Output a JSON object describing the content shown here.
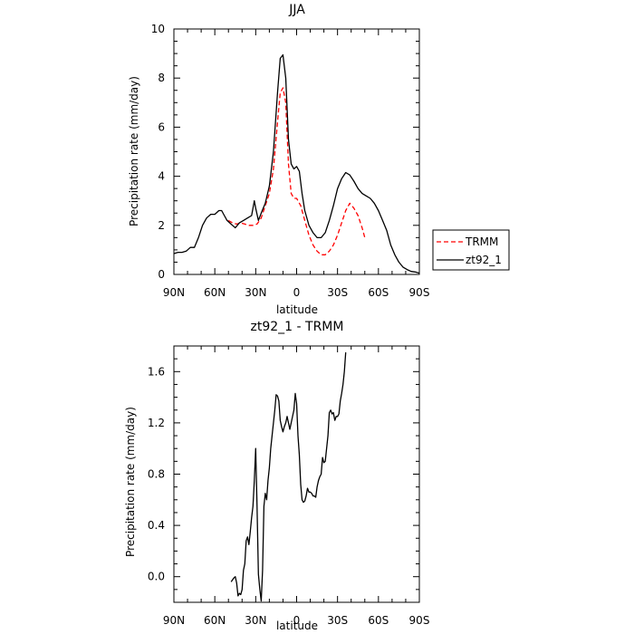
{
  "chart_data": [
    {
      "type": "line",
      "title": "JJA",
      "xlabel": "latitude",
      "ylabel": "Precipitation rate (mm/day)",
      "xlim": [
        90,
        -90
      ],
      "ylim": [
        0,
        10
      ],
      "x_ticks": [
        {
          "value": 90,
          "label": "90N"
        },
        {
          "value": 60,
          "label": "60N"
        },
        {
          "value": 30,
          "label": "30N"
        },
        {
          "value": 0,
          "label": "0"
        },
        {
          "value": -30,
          "label": "30S"
        },
        {
          "value": -60,
          "label": "60S"
        },
        {
          "value": -90,
          "label": "90S"
        }
      ],
      "y_ticks": [
        {
          "value": 0,
          "label": "0"
        },
        {
          "value": 2,
          "label": "2"
        },
        {
          "value": 4,
          "label": "4"
        },
        {
          "value": 6,
          "label": "6"
        },
        {
          "value": 8,
          "label": "8"
        },
        {
          "value": 10,
          "label": "10"
        }
      ],
      "legend_position": "right",
      "series": [
        {
          "name": "TRMM",
          "color": "#ff0000",
          "dash": "dashed",
          "points": [
            [
              50,
              2.2
            ],
            [
              47,
              2.1
            ],
            [
              44,
              2.05
            ],
            [
              41,
              2.1
            ],
            [
              38,
              2.05
            ],
            [
              35,
              2.0
            ],
            [
              32,
              2.0
            ],
            [
              29,
              2.05
            ],
            [
              26,
              2.3
            ],
            [
              23,
              2.8
            ],
            [
              20,
              3.3
            ],
            [
              17,
              4.3
            ],
            [
              14,
              6.2
            ],
            [
              12,
              7.4
            ],
            [
              10,
              7.6
            ],
            [
              8,
              7.0
            ],
            [
              6,
              4.5
            ],
            [
              4,
              3.3
            ],
            [
              2,
              3.1
            ],
            [
              0,
              3.1
            ],
            [
              -3,
              2.8
            ],
            [
              -6,
              2.2
            ],
            [
              -9,
              1.6
            ],
            [
              -12,
              1.2
            ],
            [
              -15,
              0.95
            ],
            [
              -18,
              0.8
            ],
            [
              -21,
              0.8
            ],
            [
              -24,
              0.95
            ],
            [
              -27,
              1.2
            ],
            [
              -30,
              1.6
            ],
            [
              -33,
              2.1
            ],
            [
              -36,
              2.6
            ],
            [
              -39,
              2.9
            ],
            [
              -42,
              2.7
            ],
            [
              -45,
              2.4
            ],
            [
              -48,
              1.9
            ],
            [
              -50,
              1.5
            ]
          ]
        },
        {
          "name": "zt92_1",
          "color": "#000000",
          "dash": "solid",
          "points": [
            [
              90,
              0.85
            ],
            [
              87,
              0.9
            ],
            [
              84,
              0.9
            ],
            [
              81,
              0.95
            ],
            [
              78,
              1.1
            ],
            [
              75,
              1.1
            ],
            [
              72,
              1.5
            ],
            [
              69,
              2.0
            ],
            [
              66,
              2.3
            ],
            [
              63,
              2.45
            ],
            [
              60,
              2.45
            ],
            [
              57,
              2.6
            ],
            [
              55,
              2.6
            ],
            [
              53,
              2.4
            ],
            [
              51,
              2.2
            ],
            [
              49,
              2.1
            ],
            [
              47,
              2.0
            ],
            [
              45,
              1.9
            ],
            [
              42,
              2.1
            ],
            [
              39,
              2.2
            ],
            [
              36,
              2.3
            ],
            [
              33,
              2.4
            ],
            [
              31,
              3.0
            ],
            [
              30,
              2.7
            ],
            [
              28,
              2.2
            ],
            [
              26,
              2.5
            ],
            [
              23,
              2.9
            ],
            [
              20,
              3.6
            ],
            [
              17,
              5.0
            ],
            [
              14,
              7.4
            ],
            [
              12,
              8.8
            ],
            [
              10,
              8.95
            ],
            [
              8,
              8.0
            ],
            [
              6,
              5.5
            ],
            [
              4,
              4.5
            ],
            [
              2,
              4.3
            ],
            [
              0,
              4.4
            ],
            [
              -2,
              4.2
            ],
            [
              -4,
              3.3
            ],
            [
              -6,
              2.6
            ],
            [
              -9,
              2.0
            ],
            [
              -12,
              1.7
            ],
            [
              -15,
              1.5
            ],
            [
              -18,
              1.5
            ],
            [
              -21,
              1.7
            ],
            [
              -24,
              2.2
            ],
            [
              -27,
              2.8
            ],
            [
              -30,
              3.5
            ],
            [
              -33,
              3.9
            ],
            [
              -36,
              4.15
            ],
            [
              -39,
              4.05
            ],
            [
              -42,
              3.8
            ],
            [
              -45,
              3.5
            ],
            [
              -48,
              3.3
            ],
            [
              -51,
              3.2
            ],
            [
              -54,
              3.1
            ],
            [
              -57,
              2.9
            ],
            [
              -60,
              2.6
            ],
            [
              -63,
              2.2
            ],
            [
              -66,
              1.8
            ],
            [
              -69,
              1.2
            ],
            [
              -72,
              0.8
            ],
            [
              -75,
              0.5
            ],
            [
              -78,
              0.3
            ],
            [
              -81,
              0.2
            ],
            [
              -84,
              0.12
            ],
            [
              -87,
              0.1
            ],
            [
              -90,
              0.05
            ]
          ]
        }
      ]
    },
    {
      "type": "line",
      "title": "zt92_1 - TRMM",
      "xlabel": "latitude",
      "ylabel": "Precipitation rate (mm/day)",
      "xlim": [
        90,
        -90
      ],
      "ylim": [
        -0.2,
        1.8
      ],
      "x_ticks": [
        {
          "value": 90,
          "label": "90N"
        },
        {
          "value": 60,
          "label": "60N"
        },
        {
          "value": 30,
          "label": "30N"
        },
        {
          "value": 0,
          "label": "0"
        },
        {
          "value": -30,
          "label": "30S"
        },
        {
          "value": -60,
          "label": "60S"
        },
        {
          "value": -90,
          "label": "90S"
        }
      ],
      "y_ticks": [
        {
          "value": 0,
          "label": "0.0"
        },
        {
          "value": 0.4,
          "label": "0.4"
        },
        {
          "value": 0.8,
          "label": "0.8"
        },
        {
          "value": 1.2,
          "label": "1.2"
        },
        {
          "value": 1.6,
          "label": "1.6"
        }
      ],
      "series": [
        {
          "color": "#000000",
          "dash": "solid",
          "points": [
            [
              48,
              -0.04
            ],
            [
              46,
              -0.01
            ],
            [
              45,
              0.0
            ],
            [
              44,
              -0.05
            ],
            [
              43,
              -0.15
            ],
            [
              42,
              -0.13
            ],
            [
              41,
              -0.14
            ],
            [
              40,
              -0.1
            ],
            [
              39,
              0.05
            ],
            [
              38,
              0.1
            ],
            [
              37,
              0.28
            ],
            [
              36,
              0.31
            ],
            [
              35,
              0.25
            ],
            [
              34,
              0.35
            ],
            [
              33,
              0.46
            ],
            [
              32,
              0.55
            ],
            [
              31,
              0.75
            ],
            [
              30,
              1.0
            ],
            [
              29,
              0.55
            ],
            [
              28,
              0.02
            ],
            [
              27,
              -0.1
            ],
            [
              26,
              -0.19
            ],
            [
              25,
              0.05
            ],
            [
              24,
              0.55
            ],
            [
              23,
              0.65
            ],
            [
              22,
              0.6
            ],
            [
              21,
              0.75
            ],
            [
              20,
              0.85
            ],
            [
              19,
              1.0
            ],
            [
              18,
              1.1
            ],
            [
              17,
              1.2
            ],
            [
              16,
              1.3
            ],
            [
              15,
              1.42
            ],
            [
              14,
              1.41
            ],
            [
              13,
              1.37
            ],
            [
              12,
              1.22
            ],
            [
              11,
              1.17
            ],
            [
              10,
              1.13
            ],
            [
              9,
              1.17
            ],
            [
              8,
              1.2
            ],
            [
              7,
              1.25
            ],
            [
              6,
              1.2
            ],
            [
              5,
              1.15
            ],
            [
              4,
              1.2
            ],
            [
              3,
              1.25
            ],
            [
              2,
              1.3
            ],
            [
              1,
              1.43
            ],
            [
              0,
              1.35
            ],
            [
              -1,
              1.1
            ],
            [
              -2,
              0.95
            ],
            [
              -3,
              0.72
            ],
            [
              -4,
              0.6
            ],
            [
              -5,
              0.58
            ],
            [
              -6,
              0.59
            ],
            [
              -7,
              0.63
            ],
            [
              -8,
              0.69
            ],
            [
              -9,
              0.66
            ],
            [
              -10,
              0.66
            ],
            [
              -11,
              0.65
            ],
            [
              -12,
              0.63
            ],
            [
              -13,
              0.63
            ],
            [
              -14,
              0.62
            ],
            [
              -15,
              0.7
            ],
            [
              -16,
              0.75
            ],
            [
              -17,
              0.78
            ],
            [
              -18,
              0.8
            ],
            [
              -19,
              0.93
            ],
            [
              -20,
              0.89
            ],
            [
              -21,
              0.9
            ],
            [
              -22,
              1.0
            ],
            [
              -23,
              1.1
            ],
            [
              -24,
              1.28
            ],
            [
              -25,
              1.3
            ],
            [
              -26,
              1.27
            ],
            [
              -27,
              1.28
            ],
            [
              -28,
              1.22
            ],
            [
              -29,
              1.25
            ],
            [
              -30,
              1.25
            ],
            [
              -31,
              1.27
            ],
            [
              -32,
              1.37
            ],
            [
              -33,
              1.43
            ],
            [
              -34,
              1.5
            ],
            [
              -35,
              1.6
            ],
            [
              -36,
              1.75
            ]
          ]
        }
      ]
    }
  ]
}
